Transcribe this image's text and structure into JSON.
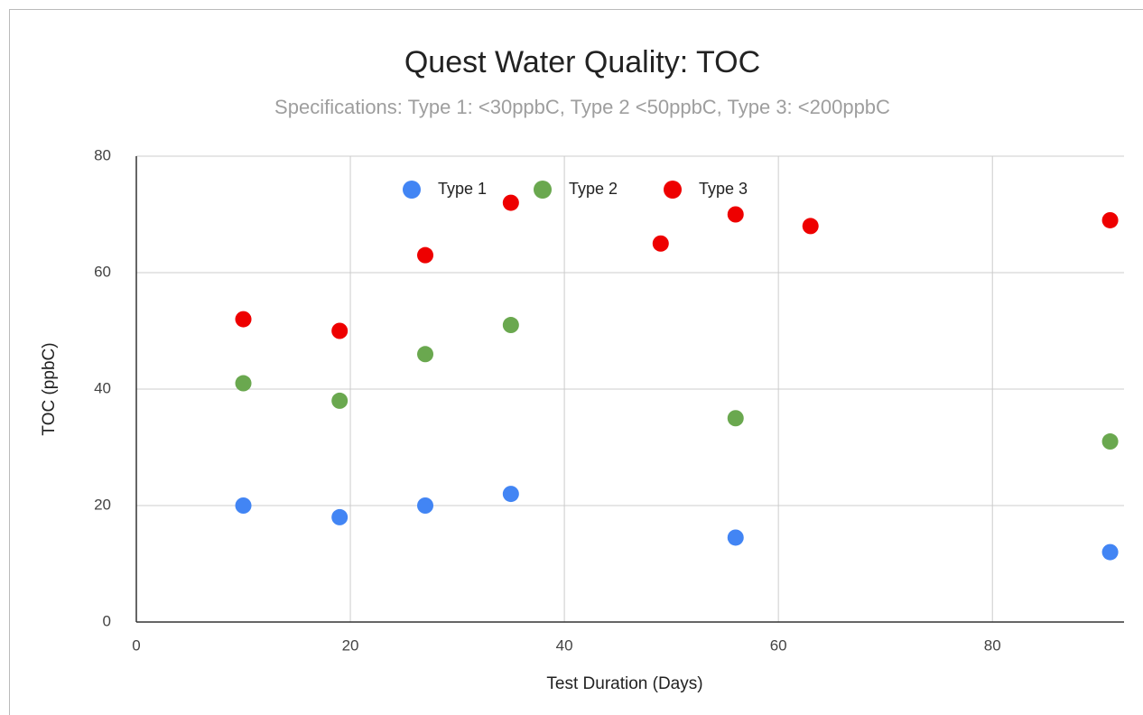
{
  "chart_data": {
    "type": "scatter",
    "title": "Quest Water Quality: TOC",
    "subtitle": "Specifications: Type 1: <30ppbC, Type 2 <50ppbC, Type 3: <200ppbC",
    "x_label": "Test Duration (Days)",
    "y_label": "TOC (ppbC)",
    "series": [
      {
        "name": "Type 1",
        "color": "#4285f4",
        "x": [
          10,
          19,
          27,
          35,
          56,
          91
        ],
        "values": [
          20,
          18,
          20,
          22,
          14.5,
          12
        ]
      },
      {
        "name": "Type 2",
        "color": "#6aa84f",
        "x": [
          10,
          19,
          27,
          35,
          56,
          91
        ],
        "values": [
          41,
          38,
          46,
          51,
          35,
          31
        ]
      },
      {
        "name": "Type 3",
        "color": "#ee0000",
        "x": [
          10,
          19,
          27,
          35,
          49,
          56,
          63,
          91
        ],
        "values": [
          52,
          50,
          63,
          72,
          65,
          70,
          68,
          69
        ]
      }
    ],
    "xlim": [
      0,
      92.3
    ],
    "xticks": [
      0,
      20,
      40,
      60,
      80
    ],
    "ylim": [
      0,
      80
    ],
    "yticks": [
      0,
      20,
      40,
      60,
      80
    ],
    "grid": true,
    "legend": "top"
  }
}
